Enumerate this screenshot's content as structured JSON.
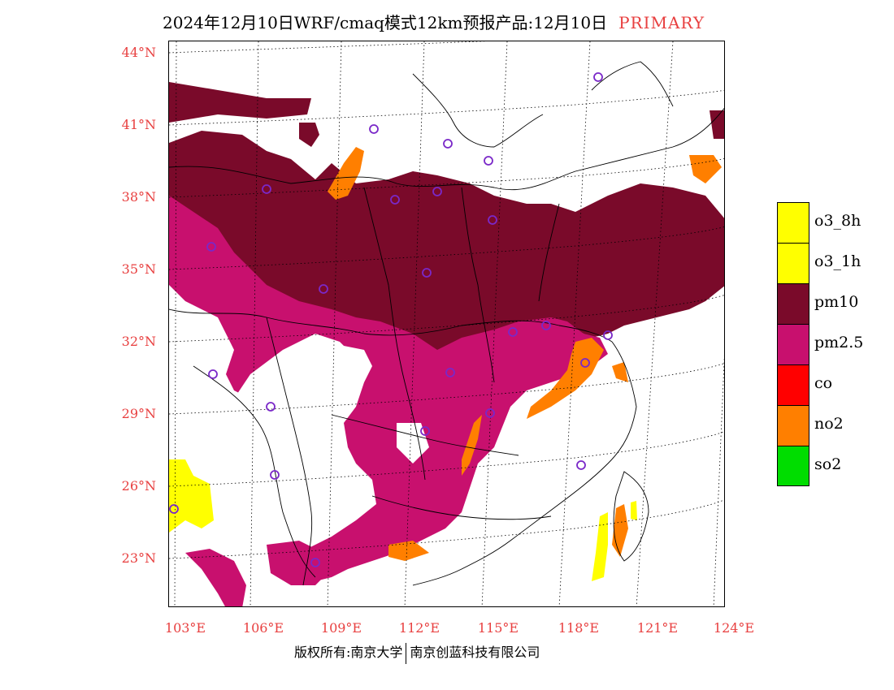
{
  "title": {
    "main": "2024年12月10日WRF/cmaq模式12km预报产品:12月10日",
    "tag": "PRIMARY"
  },
  "axes": {
    "lat_labels": [
      "44°N",
      "41°N",
      "38°N",
      "35°N",
      "32°N",
      "29°N",
      "26°N",
      "23°N"
    ],
    "lon_labels": [
      "103°E",
      "106°E",
      "109°E",
      "112°E",
      "115°E",
      "118°E",
      "121°E",
      "124°E"
    ]
  },
  "legend": [
    {
      "label": "o3_8h",
      "color": "#ffff00"
    },
    {
      "label": "o3_1h",
      "color": "#ffff00"
    },
    {
      "label": "pm10",
      "color": "#7a0a2a"
    },
    {
      "label": "pm2.5",
      "color": "#c8106e"
    },
    {
      "label": "co",
      "color": "#ff0000"
    },
    {
      "label": "no2",
      "color": "#ff7f00"
    },
    {
      "label": "so2",
      "color": "#00dd00"
    }
  ],
  "copyright": {
    "left": "版权所有:南京大学",
    "right": "南京创蓝科技有限公司"
  }
}
